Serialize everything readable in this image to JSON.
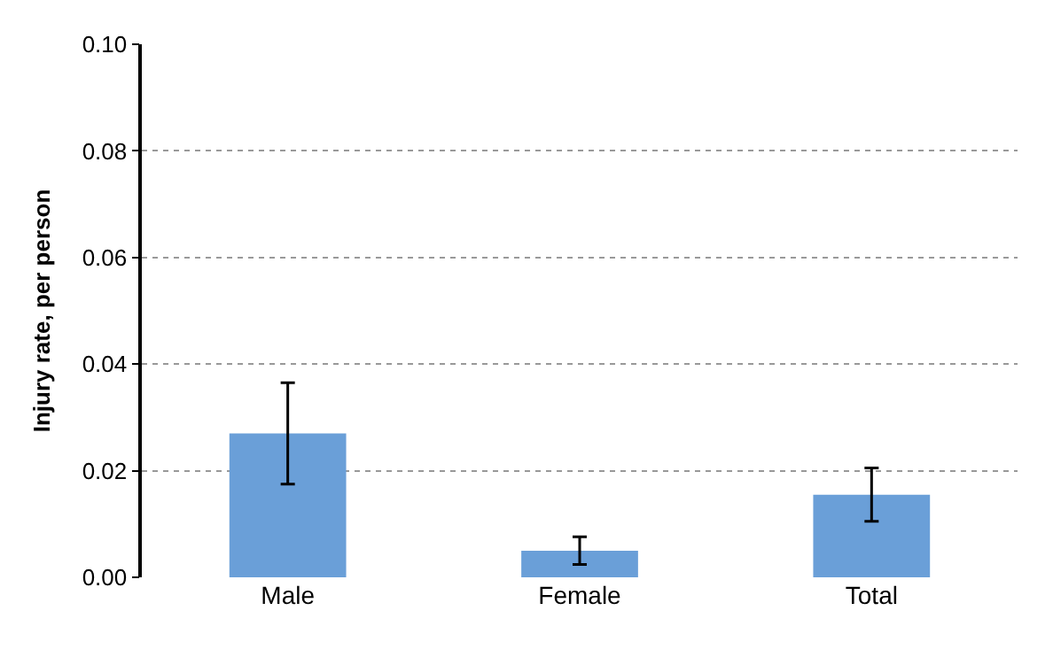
{
  "chart_data": {
    "type": "bar",
    "ylabel": "Injury rate, per person",
    "categories": [
      "Male",
      "Female",
      "Total"
    ],
    "values": [
      0.027,
      0.005,
      0.0155
    ],
    "errors": [
      0.0095,
      0.0026,
      0.005
    ],
    "color": "#6a9fd8",
    "ylim": [
      0,
      0.1
    ],
    "yticks": [
      {
        "value": 0,
        "label": "0.00"
      },
      {
        "value": 0.02,
        "label": "0.02"
      },
      {
        "value": 0.04,
        "label": "0.04"
      },
      {
        "value": 0.06,
        "label": "0.06"
      },
      {
        "value": 0.08,
        "label": "0.08"
      },
      {
        "value": 0.1,
        "label": "0.10"
      }
    ],
    "grid": "y",
    "legend": false
  }
}
